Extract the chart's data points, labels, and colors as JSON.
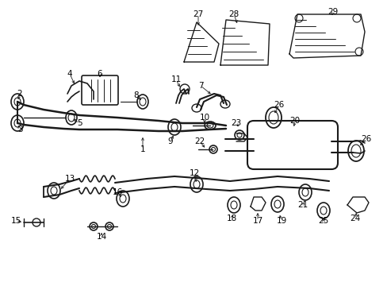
{
  "bg_color": "#ffffff",
  "line_color": "#1a1a1a",
  "label_color": "#000000",
  "figsize": [
    4.89,
    3.6
  ],
  "dpi": 100,
  "xlim": [
    0,
    489
  ],
  "ylim": [
    0,
    360
  ]
}
